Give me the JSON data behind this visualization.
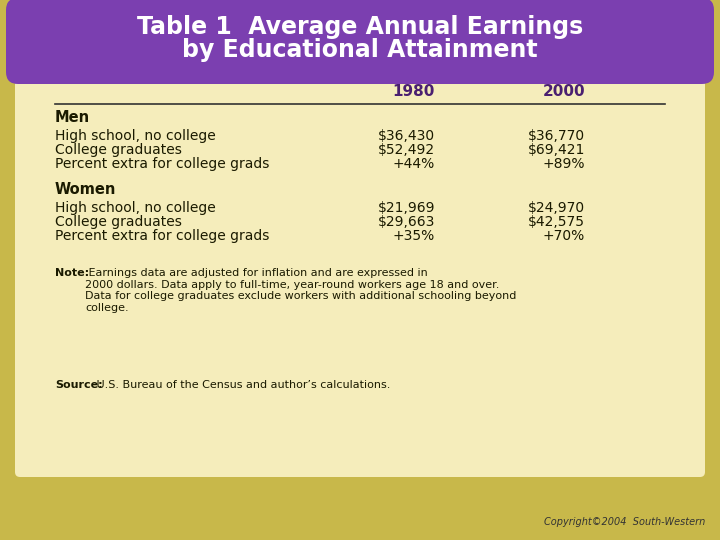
{
  "title_line1": "Table 1  Average Annual Earnings",
  "title_line2": "by Educational Attainment",
  "title_bg_color": "#7b3fb0",
  "title_text_color": "#ffffff",
  "table_bg_color": "#f5edbb",
  "outer_bg_top": "#c8b84a",
  "outer_bg": "#c8b84a",
  "text_color": "#1a1a00",
  "purple_text_color": "#4a2070",
  "men_header": "Men",
  "men_rows": [
    [
      "High school, no college",
      "$36,430",
      "$36,770"
    ],
    [
      "College graduates",
      "$52,492",
      "$69,421"
    ],
    [
      "Percent extra for college grads",
      "+44%",
      "+89%"
    ]
  ],
  "women_header": "Women",
  "women_rows": [
    [
      "High school, no college",
      "$21,969",
      "$24,970"
    ],
    [
      "College graduates",
      "$29,663",
      "$42,575"
    ],
    [
      "Percent extra for college grads",
      "+35%",
      "+70%"
    ]
  ],
  "note_bold": "Note:",
  "note_text": " Earnings data are adjusted for inflation and are expressed in\n2000 dollars. Data apply to full-time, year-round workers age 18 and over.\nData for college graduates exclude workers with additional schooling beyond\ncollege.",
  "source_bold": "Source:",
  "source_text": " U.S. Bureau of the Census and author’s calculations.",
  "copyright": "Copyright©2004  South-Western"
}
